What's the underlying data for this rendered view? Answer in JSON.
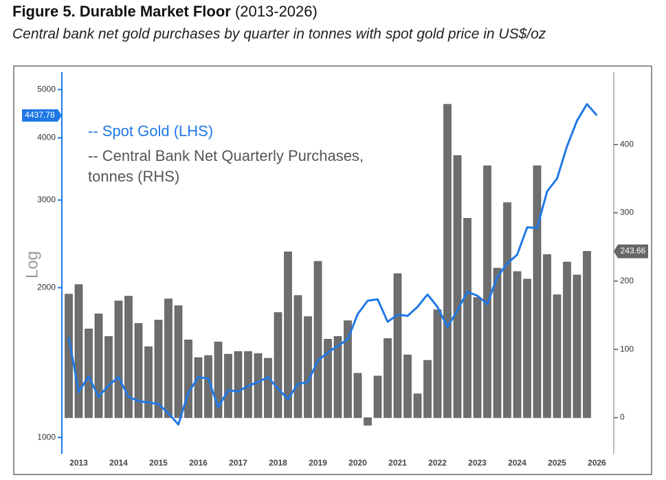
{
  "chart_data": {
    "type": "bar",
    "title": "Figure 5. Durable Market Floor",
    "title_period": "(2013-2026)",
    "subtitle": "Central bank net gold purchases by quarter in tonnes with spot gold price in US$/oz",
    "ylabel": "Log",
    "log_scale": true,
    "categories": [
      null,
      "2013",
      null,
      null,
      null,
      "2014",
      null,
      null,
      null,
      "2015",
      null,
      null,
      null,
      "2016",
      null,
      null,
      null,
      "2017",
      null,
      null,
      null,
      "2018",
      null,
      null,
      null,
      "2019",
      null,
      null,
      null,
      "2020",
      null,
      null,
      null,
      "2021",
      null,
      null,
      null,
      "2022",
      null,
      null,
      null,
      "2023",
      null,
      null,
      null,
      "2024",
      null,
      null,
      null,
      "2025",
      null,
      null,
      null,
      "2026"
    ],
    "ylim": [
      927,
      5420
    ],
    "yticks": [
      1000,
      2000,
      3000,
      4000,
      5000
    ],
    "y2lim": [
      -53,
      506
    ],
    "y2ticks": [
      0,
      100,
      200,
      300,
      400
    ],
    "series": [
      {
        "name": "-- Central Bank Net Quarterly Purchases, tonnes (RHS)",
        "type": "bar",
        "axis": "y2",
        "color": "#6e6e6e",
        "values": [
          181,
          195,
          130,
          152,
          119,
          171,
          178,
          138,
          104,
          143,
          174,
          164,
          114,
          88,
          91,
          111,
          93,
          97,
          97,
          94,
          87,
          154,
          243,
          179,
          148,
          229,
          115,
          119,
          142,
          65,
          -11,
          61,
          116,
          211,
          92,
          35,
          84,
          158,
          459,
          384,
          292,
          176,
          369,
          219,
          315,
          214,
          203,
          369,
          239,
          180,
          228,
          209,
          243.66,
          null
        ]
      },
      {
        "name": "-- Spot Gold (LHS)",
        "type": "line",
        "color": "#1f78e6",
        "values": [
          1590,
          1235,
          1327,
          1207,
          1273,
          1322,
          1207,
          1184,
          1176,
          1168,
          1118,
          1062,
          1230,
          1322,
          1314,
          1150,
          1245,
          1237,
          1269,
          1293,
          1322,
          1253,
          1195,
          1281,
          1293,
          1427,
          1483,
          1527,
          1576,
          1771,
          1883,
          1895,
          1708,
          1765,
          1755,
          1830,
          1938,
          1830,
          1668,
          1800,
          1962,
          1927,
          1855,
          2102,
          2236,
          2330,
          2644,
          2636,
          3122,
          3314,
          3848,
          4330,
          4676,
          4437.78
        ]
      }
    ]
  }
}
